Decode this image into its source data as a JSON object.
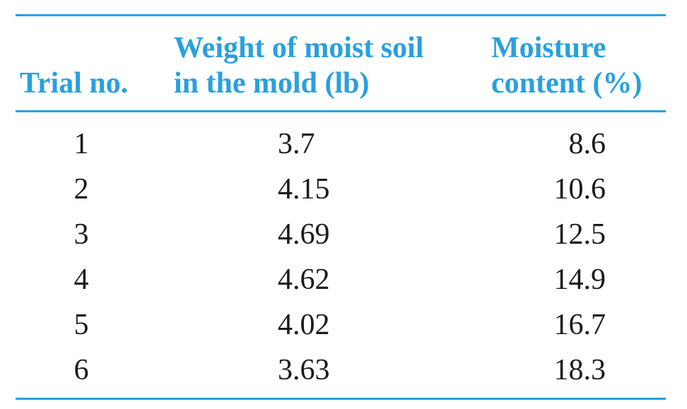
{
  "table": {
    "headers": {
      "trial": "Trial no.",
      "weight_line1": "Weight of moist soil",
      "weight_line2": "in the mold (lb)",
      "moisture_line1": "Moisture",
      "moisture_line2": "content (%)"
    },
    "rows": [
      {
        "trial": "1",
        "weight": "3.7",
        "moisture": "8.6"
      },
      {
        "trial": "2",
        "weight": "4.15",
        "moisture": "10.6"
      },
      {
        "trial": "3",
        "weight": "4.69",
        "moisture": "12.5"
      },
      {
        "trial": "4",
        "weight": "4.62",
        "moisture": "14.9"
      },
      {
        "trial": "5",
        "weight": "4.02",
        "moisture": "16.7"
      },
      {
        "trial": "6",
        "weight": "3.63",
        "moisture": "18.3"
      }
    ]
  },
  "colors": {
    "accent": "#29a0de",
    "text": "#1a1a1a"
  }
}
